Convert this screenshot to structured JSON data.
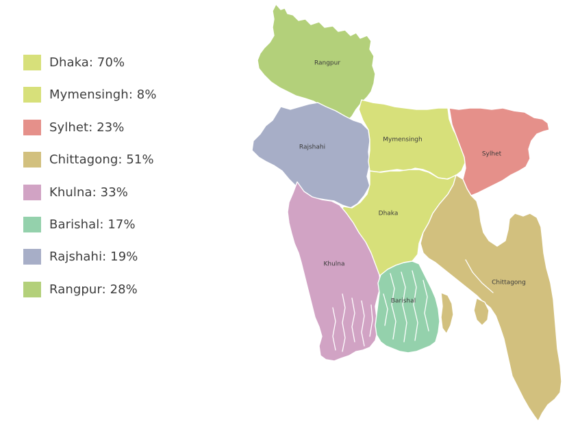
{
  "legend": [
    {
      "label": "Dhaka: 70%",
      "color": "#d7e07a"
    },
    {
      "label": "Mymensingh: 8%",
      "color": "#d7e07a"
    },
    {
      "label": "Sylhet: 23%",
      "color": "#e5908a"
    },
    {
      "label": "Chittagong: 51%",
      "color": "#d2c07e"
    },
    {
      "label": "Khulna: 33%",
      "color": "#d1a3c4"
    },
    {
      "label": "Barishal: 17%",
      "color": "#94d1ac"
    },
    {
      "label": "Rajshahi: 19%",
      "color": "#a7aec7"
    },
    {
      "label": "Rangpur: 28%",
      "color": "#b3d07a"
    }
  ],
  "map": {
    "regions": [
      {
        "name": "Rangpur",
        "color": "#b3d07a"
      },
      {
        "name": "Rajshahi",
        "color": "#a7aec7"
      },
      {
        "name": "Mymensingh",
        "color": "#d7e07a"
      },
      {
        "name": "Dhaka",
        "color": "#d7e07a"
      },
      {
        "name": "Sylhet",
        "color": "#e5908a"
      },
      {
        "name": "Khulna",
        "color": "#d1a3c4"
      },
      {
        "name": "Barishal",
        "color": "#94d1ac"
      },
      {
        "name": "Chittagong",
        "color": "#d2c07e"
      }
    ]
  }
}
